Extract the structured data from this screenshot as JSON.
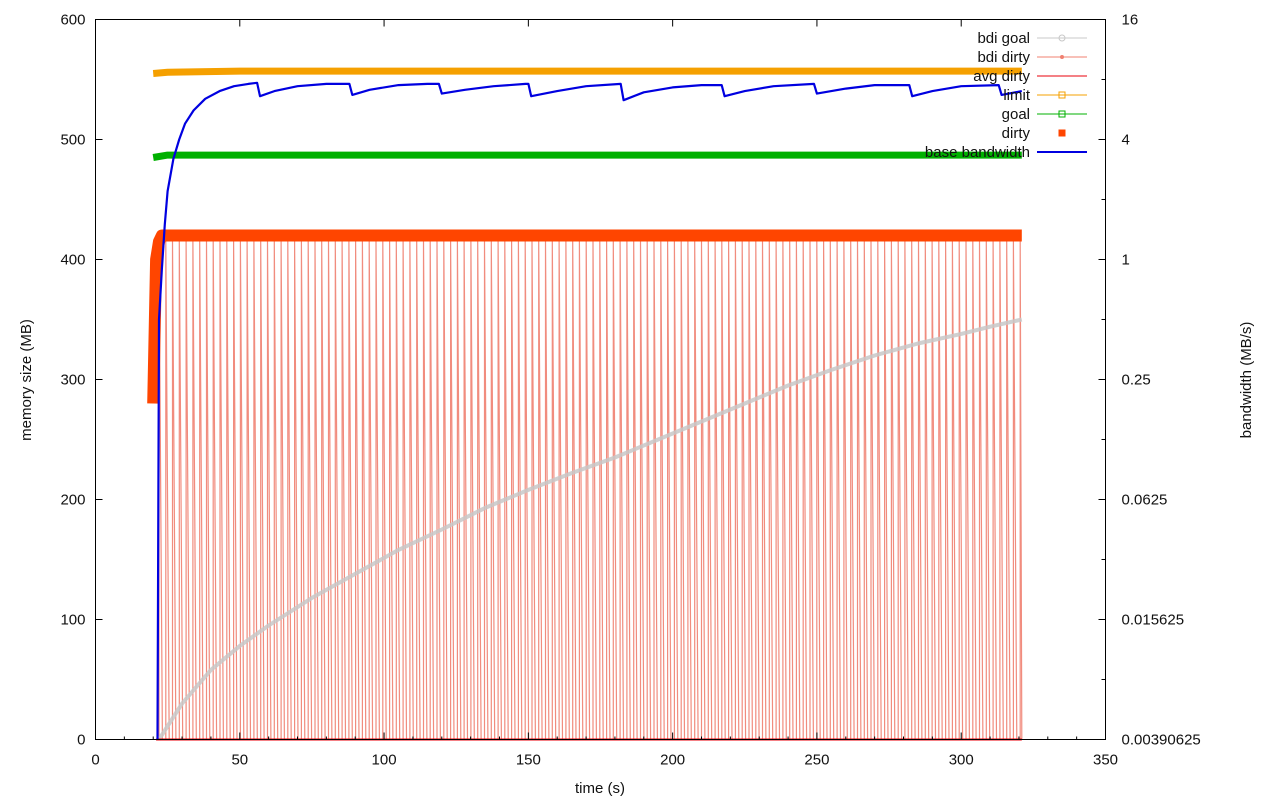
{
  "chart_data": {
    "type": "line",
    "title": "",
    "xlabel": "time (s)",
    "ylabel": "memory size (MB)",
    "y2label": "bandwidth (MB/s)",
    "xlim": [
      0,
      350
    ],
    "ylim": [
      0,
      600
    ],
    "y2scale": "log2",
    "y2lim": [
      0.00390625,
      16
    ],
    "xticks": [
      0,
      50,
      100,
      150,
      200,
      250,
      300,
      350
    ],
    "yticks": [
      0,
      100,
      200,
      300,
      400,
      500,
      600
    ],
    "y2ticks": [
      {
        "value": 16,
        "label": "16"
      },
      {
        "value": 4,
        "label": "4"
      },
      {
        "value": 1,
        "label": "1"
      },
      {
        "value": 0.25,
        "label": "0.25"
      },
      {
        "value": 0.0625,
        "label": "0.0625"
      },
      {
        "value": 0.015625,
        "label": "0.015625"
      },
      {
        "value": 0.00390625,
        "label": "0.00390625"
      }
    ],
    "grid": false,
    "legend_position": "top-right",
    "series": [
      {
        "name": "bdi goal",
        "color": "#c8c8c8",
        "marker": "circle",
        "axis": "y",
        "x": [
          22,
          30,
          40,
          50,
          60,
          75,
          90,
          105,
          120,
          135,
          150,
          165,
          180,
          195,
          210,
          225,
          240,
          255,
          270,
          285,
          300,
          310,
          321
        ],
        "y": [
          0,
          30,
          58,
          78,
          95,
          118,
          138,
          158,
          175,
          193,
          208,
          222,
          235,
          250,
          265,
          280,
          295,
          308,
          320,
          330,
          338,
          344,
          350
        ]
      },
      {
        "name": "bdi dirty",
        "color": "#f08070",
        "marker": "dot",
        "axis": "y",
        "pattern": "sawtooth",
        "x_start": 22,
        "x_end": 321,
        "period": 2.35,
        "low": 0,
        "high": 415
      },
      {
        "name": "avg dirty",
        "color": "#e8000b",
        "marker": "none",
        "axis": "y",
        "x": [
          21,
          321
        ],
        "y": [
          0,
          0
        ]
      },
      {
        "name": "limit",
        "color": "#f5a000",
        "marker": "square",
        "axis": "y",
        "x": [
          20,
          25,
          50,
          100,
          150,
          200,
          250,
          300,
          321
        ],
        "y": [
          555,
          556,
          557,
          557,
          557,
          557,
          557,
          557,
          557
        ]
      },
      {
        "name": "goal",
        "color": "#00b000",
        "marker": "square",
        "axis": "y",
        "x": [
          20,
          25,
          50,
          100,
          150,
          200,
          250,
          300,
          321
        ],
        "y": [
          485,
          487,
          487,
          487,
          487,
          487,
          487,
          487,
          487
        ]
      },
      {
        "name": "dirty",
        "color": "#ff4500",
        "marker": "filled-square",
        "axis": "y",
        "x": [
          20,
          21,
          22,
          23,
          30,
          60,
          90,
          120,
          150,
          180,
          210,
          240,
          270,
          300,
          321
        ],
        "y": [
          280,
          400,
          415,
          420,
          420,
          420,
          420,
          420,
          420,
          420,
          420,
          420,
          420,
          420,
          420
        ]
      },
      {
        "name": "base bandwidth",
        "color": "#0000e0",
        "marker": "none",
        "axis": "y2",
        "x": [
          21.5,
          22,
          23,
          24,
          25,
          27,
          29,
          31,
          34,
          38,
          43,
          48,
          53,
          56,
          57,
          62,
          70,
          80,
          88,
          89,
          95,
          105,
          115,
          119,
          120,
          128,
          138,
          149,
          150,
          151,
          160,
          170,
          182,
          183,
          190,
          200,
          210,
          217,
          218,
          225,
          235,
          249,
          250,
          260,
          270,
          282,
          283,
          290,
          300,
          313,
          314,
          321
        ],
        "y": [
          0.00390625,
          0.5,
          0.9,
          1.5,
          2.2,
          3.2,
          4.0,
          4.8,
          5.6,
          6.4,
          7.0,
          7.4,
          7.6,
          7.7,
          6.6,
          7.0,
          7.4,
          7.6,
          7.6,
          6.7,
          7.1,
          7.5,
          7.6,
          7.6,
          6.8,
          7.1,
          7.4,
          7.6,
          7.6,
          6.6,
          7.0,
          7.4,
          7.6,
          6.3,
          6.9,
          7.3,
          7.5,
          7.5,
          6.6,
          7.0,
          7.4,
          7.6,
          6.8,
          7.2,
          7.5,
          7.5,
          6.6,
          7.0,
          7.4,
          7.5,
          6.7,
          7.0
        ]
      }
    ]
  }
}
